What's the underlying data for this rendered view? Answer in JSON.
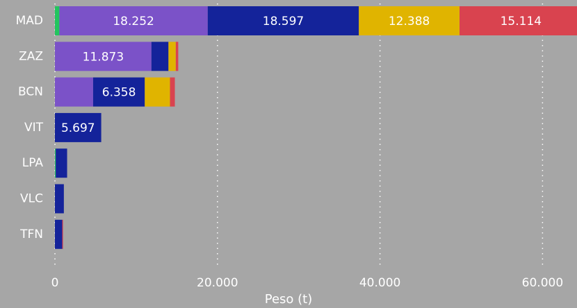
{
  "chart_data": {
    "type": "stacked-barh",
    "x_label": "Peso (t)",
    "categories": [
      "MAD",
      "ZAZ",
      "BCN",
      "VIT",
      "LPA",
      "VLC",
      "TFN"
    ],
    "series": [
      {
        "color": "#22c55e",
        "values": [
          550,
          0,
          0,
          0,
          100,
          0,
          0
        ]
      },
      {
        "color": "#7b52c8",
        "values": [
          18252,
          11873,
          4700,
          0,
          0,
          0,
          0
        ],
        "value_labels": [
          "18.252",
          "11.873",
          null,
          null,
          null,
          null,
          null
        ]
      },
      {
        "color": "#14239a",
        "values": [
          18597,
          2100,
          6358,
          5697,
          1400,
          1100,
          900
        ],
        "value_labels": [
          "18.597",
          null,
          "6.358",
          "5.697",
          null,
          null,
          null
        ]
      },
      {
        "color": "#e0b400",
        "values": [
          12388,
          900,
          3100,
          0,
          0,
          0,
          0
        ],
        "value_labels": [
          "12.388",
          null,
          null,
          null,
          null,
          null,
          null
        ]
      },
      {
        "color": "#d9434f",
        "values": [
          15114,
          300,
          600,
          0,
          0,
          0,
          100
        ],
        "value_labels": [
          "15.114",
          null,
          null,
          null,
          null,
          null,
          null
        ]
      }
    ],
    "xlim": [
      0,
      63900
    ],
    "xticks": [
      0,
      {
        "value": 20000,
        "label": "20.000"
      },
      {
        "value": 40000,
        "label": "40.000"
      },
      {
        "value": 60000,
        "label": "60.000"
      }
    ],
    "grid": true
  }
}
